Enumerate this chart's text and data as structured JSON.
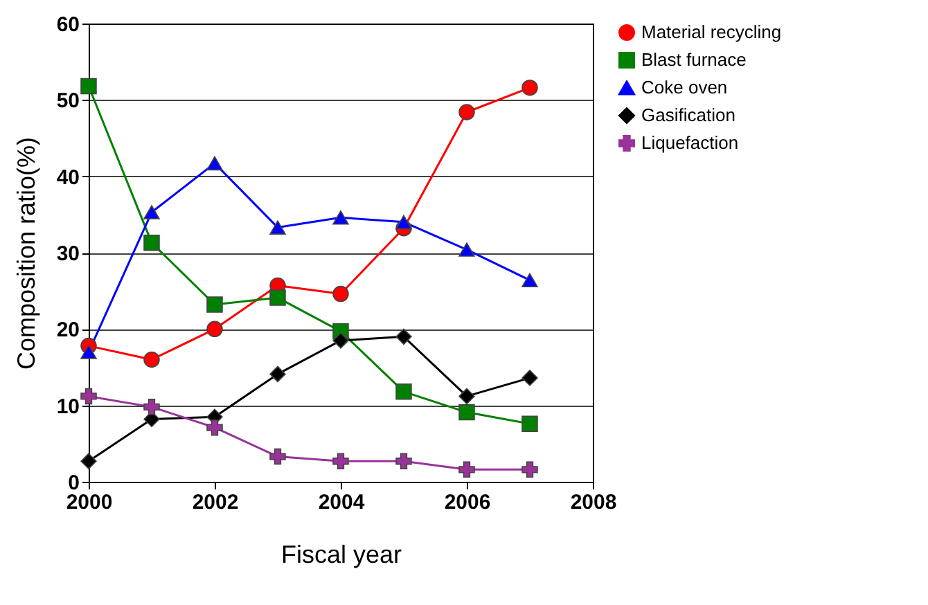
{
  "chart_data": {
    "type": "line",
    "xlabel": "Fiscal year",
    "ylabel": "Composition ratio(%)",
    "x": [
      2000,
      2001,
      2002,
      2003,
      2004,
      2005,
      2006,
      2007
    ],
    "xlim": [
      2000,
      2008
    ],
    "xticks": [
      2000,
      2002,
      2004,
      2006,
      2008
    ],
    "ylim": [
      0,
      60
    ],
    "yticks": [
      0,
      10,
      20,
      30,
      40,
      50,
      60
    ],
    "grid": "y",
    "legend": "right",
    "series": [
      {
        "name": "Material recycling",
        "color": "#ff0000",
        "marker": "circle",
        "values": [
          17.8,
          16,
          20,
          25.7,
          24.6,
          33.2,
          48.4,
          51.6
        ]
      },
      {
        "name": "Blast furnace",
        "color": "#008000",
        "marker": "square",
        "values": [
          51.8,
          31.3,
          23.2,
          24.1,
          19.7,
          11.8,
          9.1,
          7.6
        ]
      },
      {
        "name": "Coke oven",
        "color": "#0000ff",
        "marker": "triangle",
        "values": [
          17,
          35.3,
          41.7,
          33.3,
          34.6,
          34,
          30.4,
          26.4
        ]
      },
      {
        "name": "Gasification",
        "color": "#000000",
        "marker": "diamond",
        "values": [
          2.7,
          8.2,
          8.5,
          14.1,
          18.5,
          19,
          11.2,
          13.6
        ]
      },
      {
        "name": "Liquefaction",
        "color": "#993399",
        "marker": "cross",
        "values": [
          11.2,
          9.8,
          7.1,
          3.3,
          2.7,
          2.7,
          1.6,
          1.6
        ]
      }
    ]
  }
}
